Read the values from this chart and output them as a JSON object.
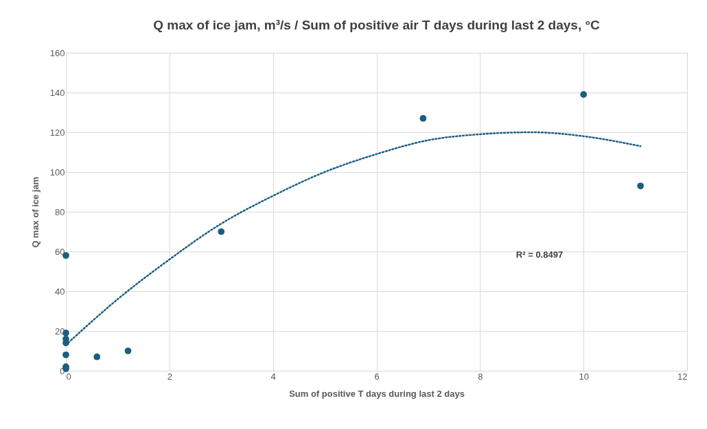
{
  "chart_data": {
    "type": "scatter",
    "title": "Q max of ice jam, m³/s / Sum of positive air T days during last 2 days, °C",
    "xlabel": "Sum of positive T days during last 2 days",
    "ylabel": "Q max of ice jam",
    "series": [
      {
        "color": "#1a5e80",
        "marker": "circle",
        "x": [
          0,
          0,
          0,
          0,
          0,
          0,
          0,
          0.6,
          1.2,
          3,
          6.9,
          10,
          11.1
        ],
        "values": [
          58,
          19,
          16,
          14,
          8,
          2,
          1,
          7,
          10,
          70,
          127,
          139,
          93
        ]
      },
      {
        "type": "line",
        "color": "#1a5e80",
        "line_style": "dotted",
        "x": [
          0,
          1,
          2,
          3,
          4,
          5,
          6,
          7,
          8,
          9,
          10,
          11.1
        ],
        "values": [
          13,
          36,
          56,
          74,
          88,
          100,
          109,
          116,
          119,
          120,
          118,
          113
        ]
      }
    ],
    "xlim": [
      0,
      12
    ],
    "xticks": [
      0,
      2,
      4,
      6,
      8,
      10,
      12
    ],
    "ylim": [
      0,
      160
    ],
    "yticks": [
      0,
      20,
      40,
      60,
      80,
      100,
      120,
      140,
      160
    ],
    "grid": true,
    "annotations": [
      "R² = 0.8497"
    ]
  }
}
